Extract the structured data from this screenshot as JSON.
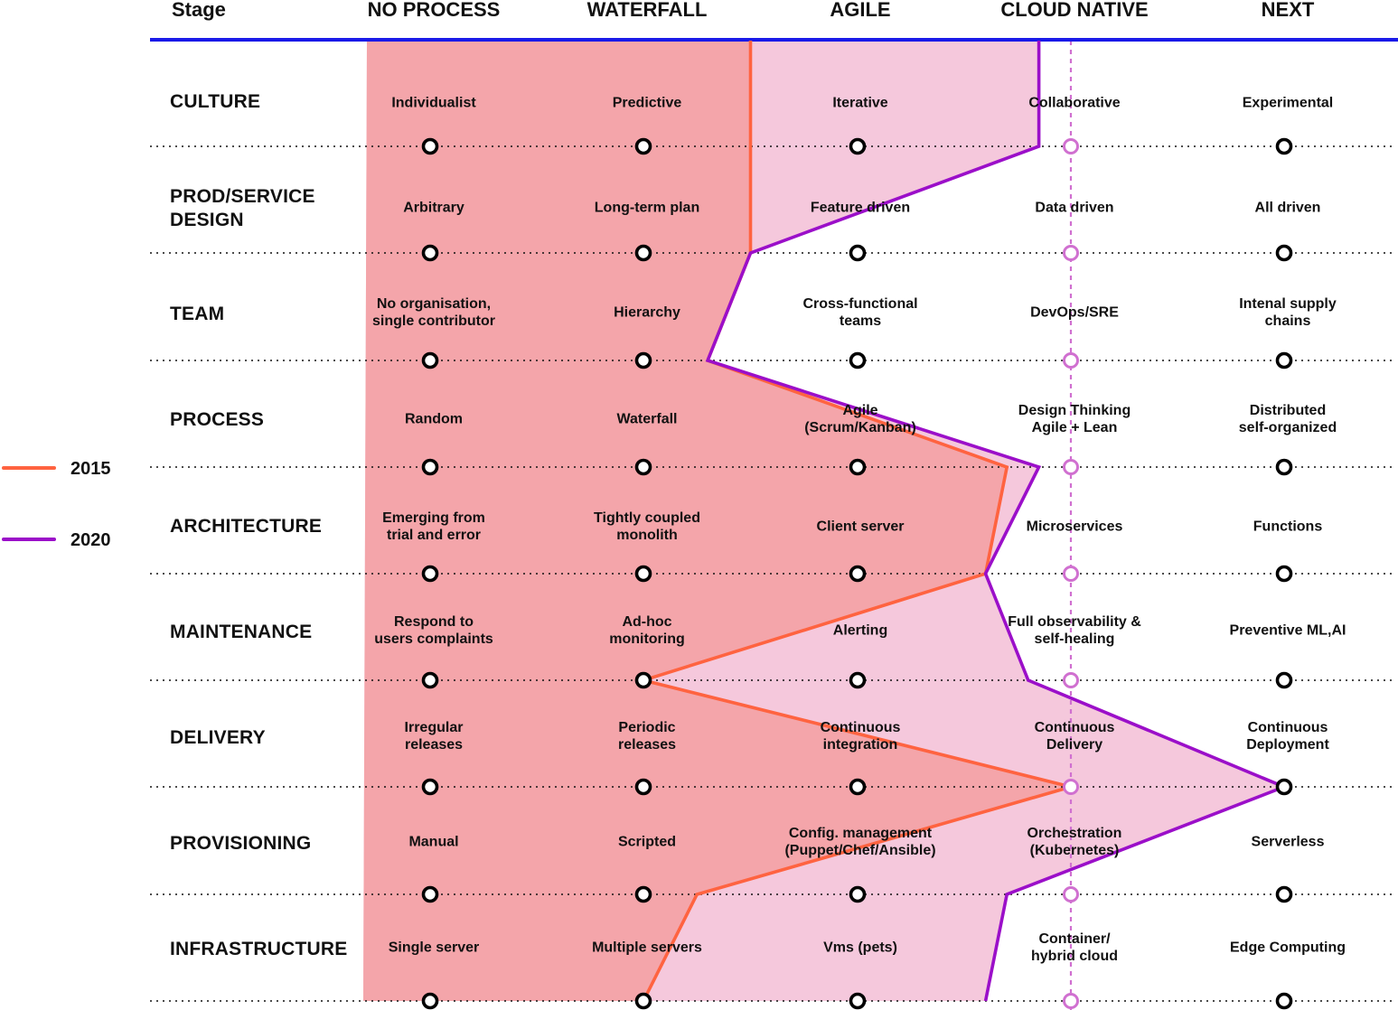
{
  "header": {
    "stage_label": "Stage",
    "columns": [
      "NO PROCESS",
      "WATERFALL",
      "AGILE",
      "CLOUD NATIVE",
      "NEXT"
    ]
  },
  "rows": [
    {
      "label": "CULTURE",
      "cells": [
        "Individualist",
        "Predictive",
        "Iterative",
        "Collaborative",
        "Experimental"
      ]
    },
    {
      "label": "PROD/SERVICE\nDESIGN",
      "cells": [
        "Arbitrary",
        "Long-term plan",
        "Feature driven",
        "Data driven",
        "All driven"
      ]
    },
    {
      "label": "TEAM",
      "cells": [
        "No organisation,\nsingle contributor",
        "Hierarchy",
        "Cross-functional\nteams",
        "DevOps/SRE",
        "Intenal supply\nchains"
      ]
    },
    {
      "label": "PROCESS",
      "cells": [
        "Random",
        "Waterfall",
        "Agile\n(Scrum/Kanban)",
        "Design Thinking\nAgile + Lean",
        "Distributed\nself-organized"
      ]
    },
    {
      "label": "ARCHITECTURE",
      "cells": [
        "Emerging from\ntrial and error",
        "Tightly coupled\nmonolith",
        "Client server",
        "Microservices",
        "Functions"
      ]
    },
    {
      "label": "MAINTENANCE",
      "cells": [
        "Respond to\nusers complaints",
        "Ad-hoc\nmonitoring",
        "Alerting",
        "Full observability &\nself-healing",
        "Preventive ML,AI"
      ]
    },
    {
      "label": "DELIVERY",
      "cells": [
        "Irregular\nreleases",
        "Periodic\nreleases",
        "Continuous\nintegration",
        "Continuous\nDelivery",
        "Continuous\nDeployment"
      ]
    },
    {
      "label": "PROVISIONING",
      "cells": [
        "Manual",
        "Scripted",
        "Config. management\n(Puppet/Chef/Ansible)",
        "Orchestration\n(Kubernetes)",
        "Serverless"
      ]
    },
    {
      "label": "INFRASTRUCTURE",
      "cells": [
        "Single server",
        "Multiple servers",
        "Vms (pets)",
        "Container/\nhybrid cloud",
        "Edge Computing"
      ]
    }
  ],
  "series": [
    {
      "name": "2015",
      "color": "#ff6340",
      "fill": "#f4a5aa",
      "positions": [
        1.5,
        1.5,
        1.3,
        2.7,
        2.6,
        1.0,
        3.0,
        1.25,
        1.0
      ]
    },
    {
      "name": "2020",
      "color": "#9b0fc9",
      "fill": "#f5c8dc",
      "positions": [
        2.85,
        1.5,
        1.3,
        2.85,
        2.6,
        2.8,
        4.5,
        2.7,
        2.6
      ]
    }
  ],
  "legend": [
    {
      "label": "2015",
      "color": "#ff6340"
    },
    {
      "label": "2020",
      "color": "#9b0fc9"
    }
  ],
  "colors": {
    "header_rule": "#1a1ae8",
    "cloud_native_marker": "#d070d0",
    "marker": "#000000"
  }
}
